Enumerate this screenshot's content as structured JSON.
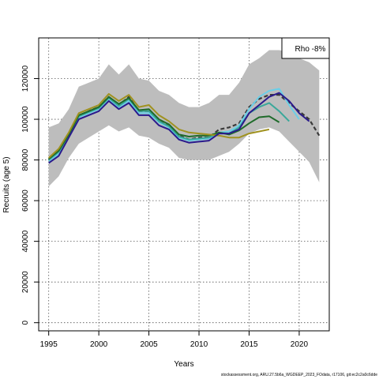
{
  "chart_data": {
    "type": "line",
    "xlabel": "Years",
    "ylabel": "Recruits (age 5)",
    "xlim": [
      1994,
      2023
    ],
    "ylim": [
      -4000,
      140000
    ],
    "x_ticks": [
      1995,
      2000,
      2005,
      2010,
      2015,
      2020
    ],
    "y_ticks": [
      0,
      20000,
      40000,
      60000,
      80000,
      100000,
      120000
    ],
    "grid": true,
    "legend": {
      "position": "top-right",
      "text": "Rho -8%"
    },
    "band": {
      "x": [
        1995,
        1996,
        1997,
        1998,
        1999,
        2000,
        2001,
        2002,
        2003,
        2004,
        2005,
        2006,
        2007,
        2008,
        2009,
        2010,
        2011,
        2012,
        2013,
        2014,
        2015,
        2016,
        2017,
        2018,
        2019,
        2020,
        2021,
        2022
      ],
      "upper": [
        96000,
        98000,
        105000,
        116000,
        118000,
        120000,
        127000,
        122000,
        127000,
        120000,
        119000,
        114000,
        112000,
        108000,
        106000,
        106000,
        108000,
        112000,
        112000,
        118000,
        127000,
        130000,
        134000,
        134000,
        133000,
        130000,
        128000,
        124000
      ],
      "lower": [
        67000,
        72000,
        81000,
        88000,
        91000,
        94000,
        97000,
        94000,
        96000,
        92000,
        91000,
        88000,
        86000,
        81000,
        80000,
        80000,
        80000,
        82000,
        84000,
        88000,
        93000,
        95000,
        96000,
        94000,
        89000,
        84000,
        79000,
        69000
      ]
    },
    "series": [
      {
        "color": "#3a3a3a",
        "style": "dashed",
        "x": [
          1995,
          1996,
          1997,
          1998,
          1999,
          2000,
          2001,
          2002,
          2003,
          2004,
          2005,
          2006,
          2007,
          2008,
          2009,
          2010,
          2011,
          2012,
          2013,
          2014,
          2015,
          2016,
          2017,
          2018,
          2019,
          2020,
          2021,
          2022
        ],
        "values": [
          80000,
          84000,
          92000,
          101000,
          104000,
          106000,
          111000,
          107000,
          111000,
          104000,
          104000,
          100000,
          97000,
          92000,
          90000,
          91000,
          91000,
          95000,
          96000,
          98000,
          106000,
          110000,
          112000,
          112000,
          108000,
          104000,
          100000,
          92000
        ]
      },
      {
        "color": "#2a1a8c",
        "x": [
          1995,
          1996,
          1997,
          1998,
          1999,
          2000,
          2001,
          2002,
          2003,
          2004,
          2005,
          2006,
          2007,
          2008,
          2009,
          2010,
          2011,
          2012,
          2013,
          2014,
          2015,
          2016,
          2017,
          2018,
          2019,
          2020,
          2021
        ],
        "values": [
          78500,
          82000,
          91000,
          100000,
          102000,
          104000,
          109000,
          105000,
          108000,
          102000,
          102000,
          97000,
          95000,
          90000,
          88500,
          89000,
          89500,
          93000,
          93000,
          95000,
          103000,
          107000,
          111000,
          113000,
          109000,
          103000,
          99000
        ]
      },
      {
        "color": "#6bcfe8",
        "x": [
          1995,
          1996,
          1997,
          1998,
          1999,
          2000,
          2001,
          2002,
          2003,
          2004,
          2005,
          2006,
          2007,
          2008,
          2009,
          2010,
          2011,
          2012,
          2013,
          2014,
          2015,
          2016,
          2017,
          2018,
          2019,
          2020
        ],
        "values": [
          79500,
          83000,
          91500,
          101000,
          103000,
          105000,
          110000,
          106000,
          109000,
          103000,
          103000,
          98500,
          96000,
          91000,
          89500,
          90000,
          90500,
          93500,
          94000,
          97000,
          105000,
          111000,
          114000,
          115000,
          107000,
          100000
        ]
      },
      {
        "color": "#3aa89a",
        "x": [
          1995,
          1996,
          1997,
          1998,
          1999,
          2000,
          2001,
          2002,
          2003,
          2004,
          2005,
          2006,
          2007,
          2008,
          2009,
          2010,
          2011,
          2012,
          2013,
          2014,
          2015,
          2016,
          2017,
          2018,
          2019
        ],
        "values": [
          80000,
          84000,
          92000,
          101500,
          103500,
          105500,
          110500,
          106500,
          110000,
          104000,
          104000,
          99000,
          96500,
          91500,
          90000,
          90500,
          91000,
          93500,
          93000,
          96000,
          103000,
          106000,
          108000,
          104000,
          99000
        ]
      },
      {
        "color": "#1f6b2a",
        "x": [
          1995,
          1996,
          1997,
          1998,
          1999,
          2000,
          2001,
          2002,
          2003,
          2004,
          2005,
          2006,
          2007,
          2008,
          2009,
          2010,
          2011,
          2012,
          2013,
          2014,
          2015,
          2016,
          2017,
          2018
        ],
        "values": [
          80500,
          84500,
          92500,
          102000,
          104000,
          106000,
          111000,
          107500,
          110500,
          104500,
          105000,
          100000,
          97500,
          92500,
          91500,
          92000,
          92000,
          93500,
          92500,
          94500,
          98000,
          101000,
          101500,
          98500
        ]
      },
      {
        "color": "#a09220",
        "x": [
          1995,
          1996,
          1997,
          1998,
          1999,
          2000,
          2001,
          2002,
          2003,
          2004,
          2005,
          2006,
          2007,
          2008,
          2009,
          2010,
          2011,
          2012,
          2013,
          2014,
          2015,
          2016,
          2017
        ],
        "values": [
          81000,
          85500,
          93500,
          103000,
          105000,
          107000,
          112500,
          109000,
          112000,
          106000,
          107000,
          102000,
          99000,
          95000,
          93500,
          93000,
          92500,
          92000,
          91000,
          91000,
          93000,
          94000,
          95000
        ]
      }
    ]
  },
  "footer": {
    "source": "stockassessment.org, ARU.27.5b6a_WGDEEP_2023_FOdata, r17106, git:ec2c2a0c6dde"
  }
}
